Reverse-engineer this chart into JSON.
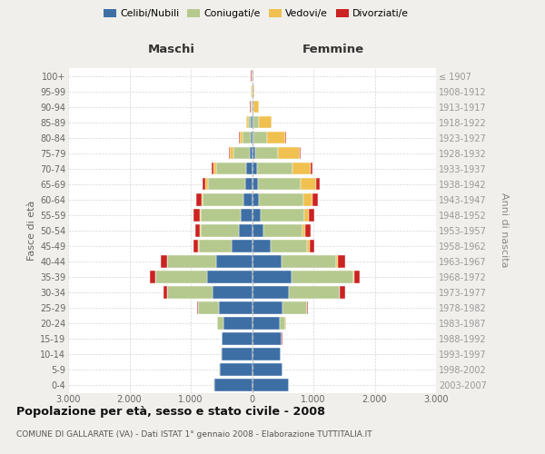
{
  "age_groups": [
    "0-4",
    "5-9",
    "10-14",
    "15-19",
    "20-24",
    "25-29",
    "30-34",
    "35-39",
    "40-44",
    "45-49",
    "50-54",
    "55-59",
    "60-64",
    "65-69",
    "70-74",
    "75-79",
    "80-84",
    "85-89",
    "90-94",
    "95-99",
    "100+"
  ],
  "birth_years": [
    "2003-2007",
    "1998-2002",
    "1993-1997",
    "1988-1992",
    "1983-1987",
    "1978-1982",
    "1973-1977",
    "1968-1972",
    "1963-1967",
    "1958-1962",
    "1953-1957",
    "1948-1952",
    "1943-1947",
    "1938-1942",
    "1933-1937",
    "1928-1932",
    "1923-1927",
    "1918-1922",
    "1913-1917",
    "1908-1912",
    "≤ 1907"
  ],
  "maschi_celibi": [
    620,
    530,
    500,
    490,
    470,
    540,
    640,
    740,
    590,
    330,
    220,
    180,
    140,
    110,
    90,
    40,
    25,
    15,
    8,
    8,
    8
  ],
  "maschi_coniugati": [
    4,
    4,
    4,
    8,
    95,
    340,
    740,
    840,
    790,
    540,
    620,
    660,
    670,
    610,
    490,
    270,
    130,
    55,
    12,
    4,
    4
  ],
  "maschi_vedovi": [
    0,
    0,
    0,
    2,
    4,
    4,
    4,
    4,
    4,
    9,
    9,
    14,
    18,
    38,
    50,
    50,
    50,
    28,
    8,
    4,
    2
  ],
  "maschi_divorziati": [
    0,
    0,
    0,
    2,
    4,
    18,
    58,
    78,
    98,
    78,
    78,
    98,
    78,
    48,
    28,
    15,
    9,
    4,
    2,
    2,
    1
  ],
  "femmine_nubili": [
    598,
    498,
    468,
    478,
    448,
    498,
    598,
    648,
    478,
    298,
    178,
    148,
    118,
    98,
    78,
    48,
    28,
    18,
    8,
    8,
    8
  ],
  "femmine_coniugate": [
    4,
    4,
    4,
    8,
    98,
    398,
    828,
    998,
    898,
    598,
    648,
    698,
    718,
    698,
    578,
    378,
    218,
    98,
    18,
    4,
    3
  ],
  "femmine_vedove": [
    0,
    0,
    0,
    2,
    4,
    4,
    9,
    14,
    18,
    38,
    48,
    78,
    148,
    248,
    298,
    348,
    298,
    198,
    78,
    20,
    5
  ],
  "femmine_divorziate": [
    0,
    0,
    0,
    2,
    4,
    18,
    78,
    98,
    118,
    88,
    88,
    98,
    88,
    58,
    28,
    19,
    9,
    4,
    3,
    2,
    1
  ],
  "color_celibi": "#3d6fa5",
  "color_coniugati": "#b5c98e",
  "color_vedovi": "#f0c050",
  "color_divorziati": "#cc2222",
  "xlim": 3000,
  "title": "Popolazione per età, sesso e stato civile - 2008",
  "subtitle": "COMUNE DI GALLARATE (VA) - Dati ISTAT 1° gennaio 2008 - Elaborazione TUTTITALIA.IT",
  "ylabel_left": "Fasce di età",
  "ylabel_right": "Anni di nascita",
  "label_maschi": "Maschi",
  "label_femmine": "Femmine",
  "bg_color": "#f0efeb",
  "plot_bg": "#ffffff",
  "grid_color": "#cccccc",
  "legend_labels": [
    "Celibi/Nubili",
    "Coniugati/e",
    "Vedovi/e",
    "Divorziati/e"
  ],
  "xtick_labels": [
    "3.000",
    "2.000",
    "1.000",
    "0",
    "1.000",
    "2.000",
    "3.000"
  ],
  "xtick_vals": [
    -3000,
    -2000,
    -1000,
    0,
    1000,
    2000,
    3000
  ]
}
